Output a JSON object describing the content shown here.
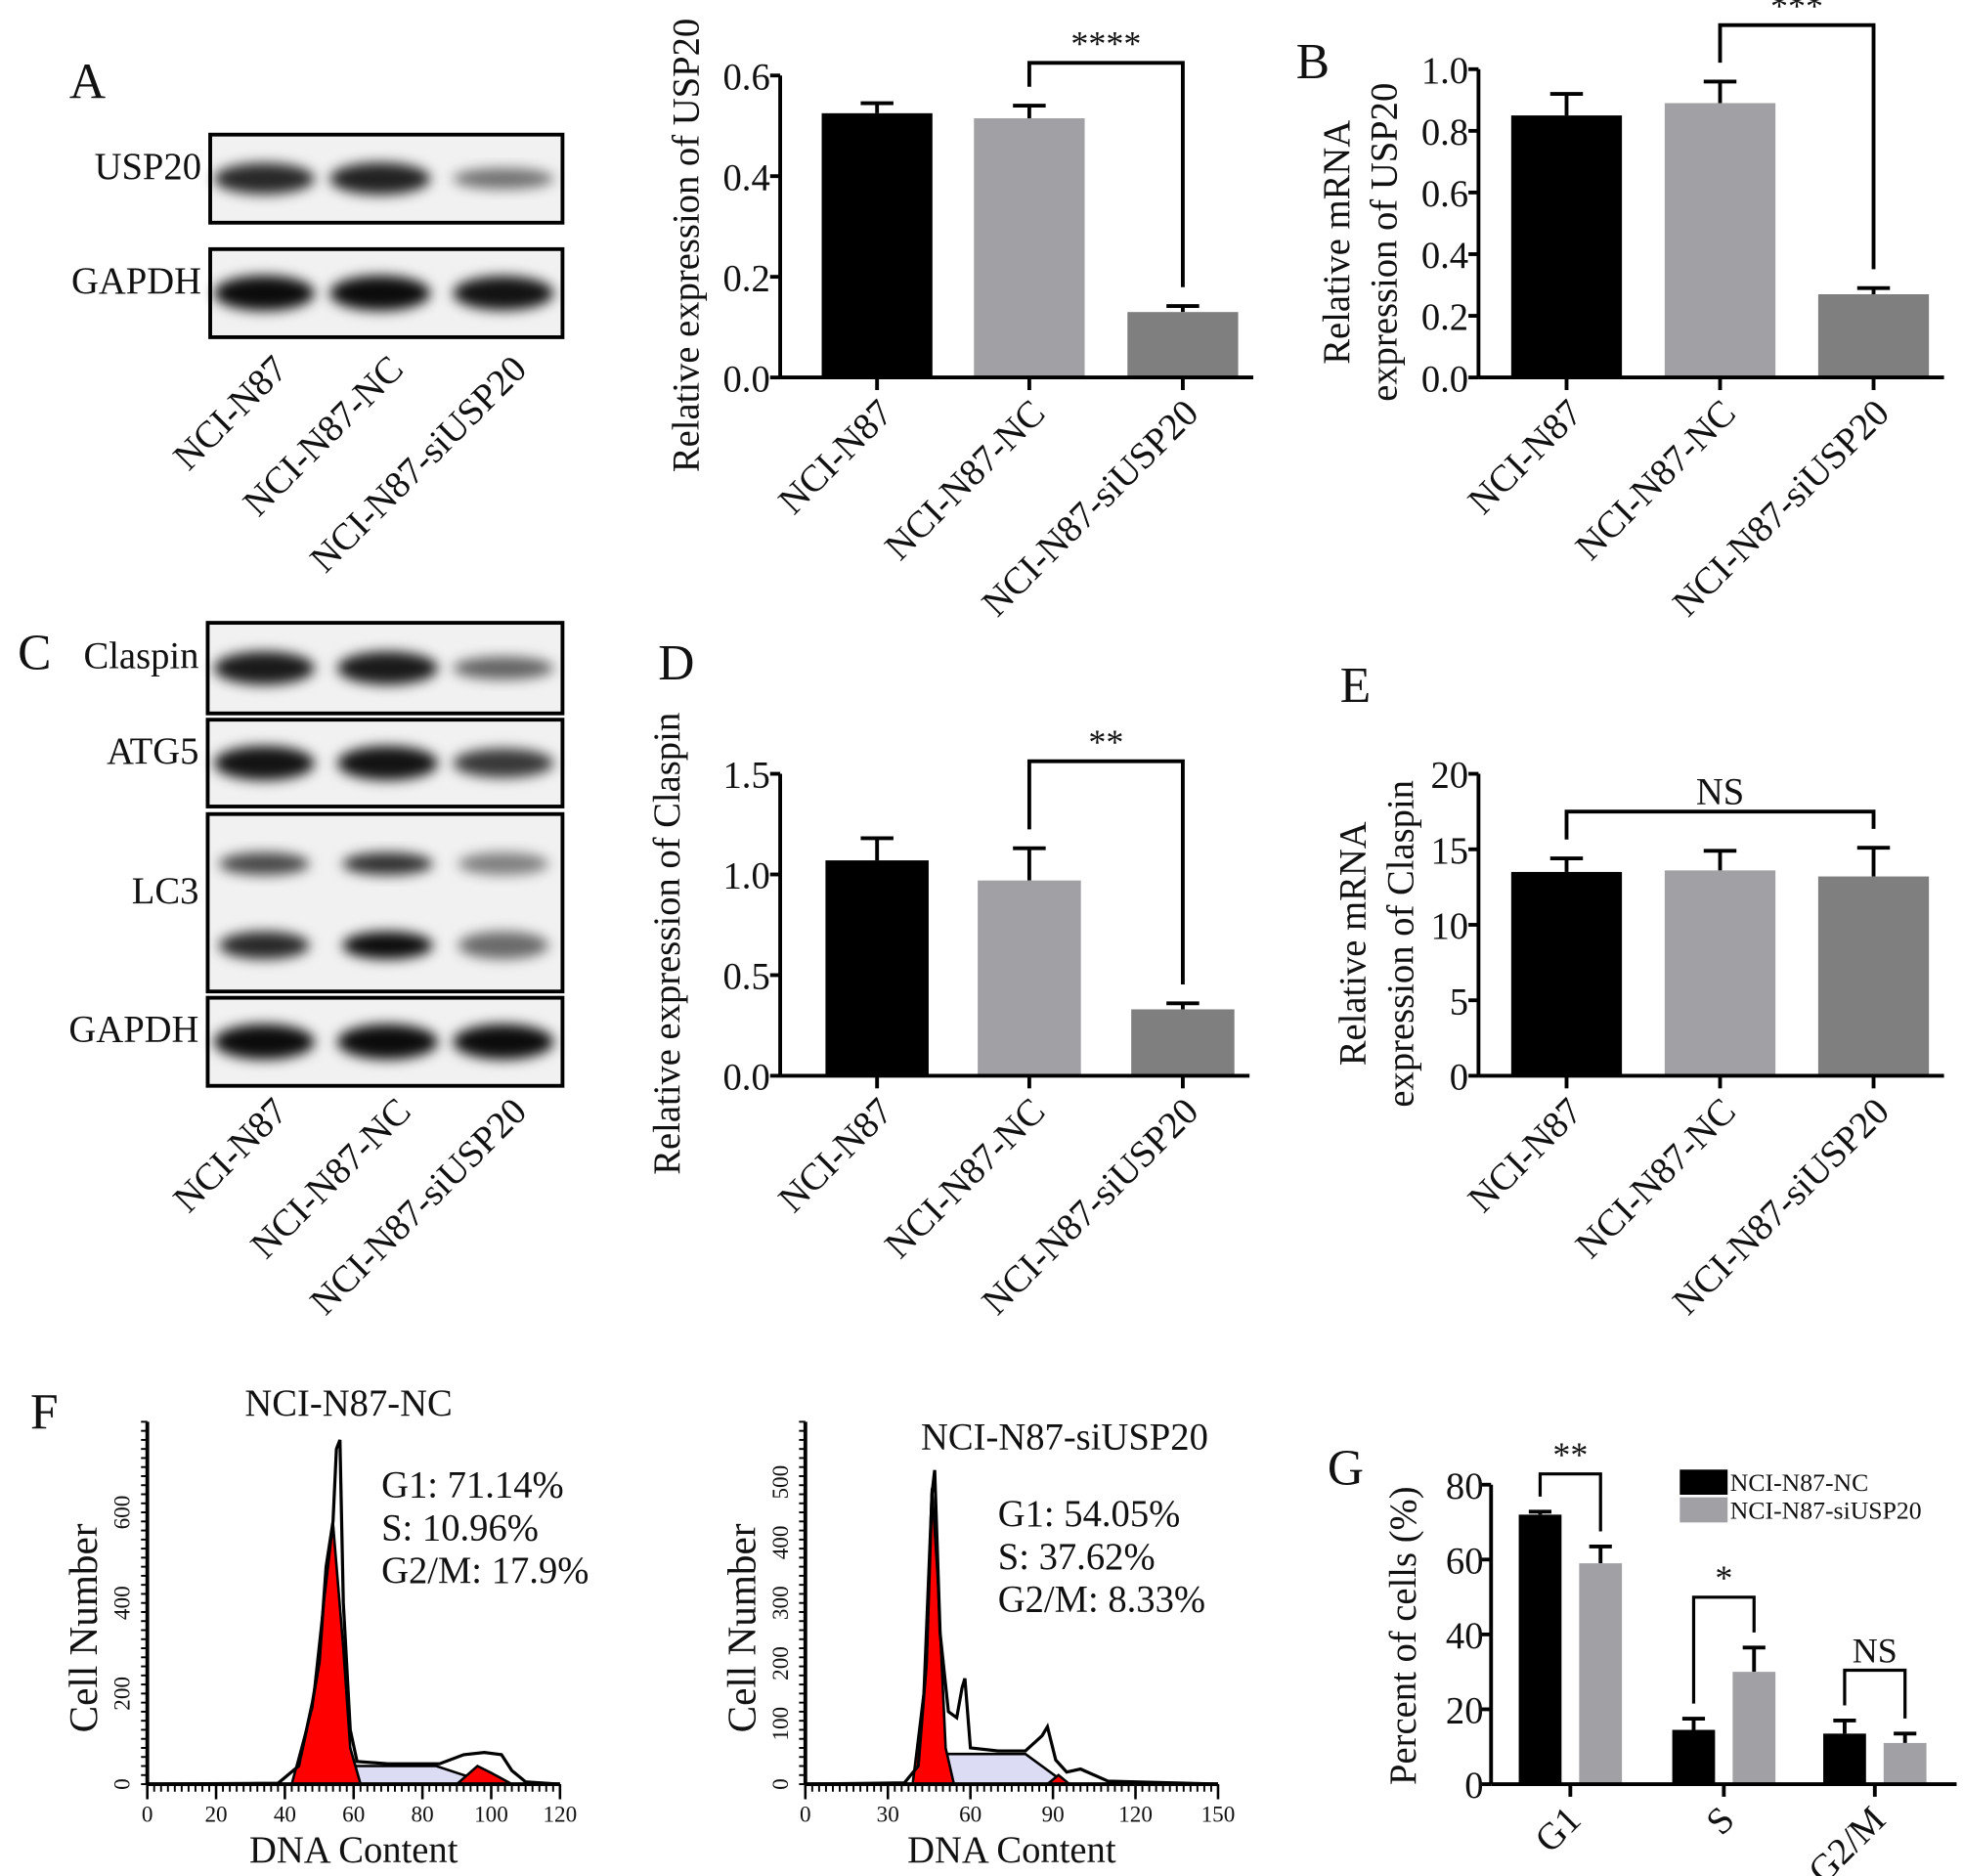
{
  "panel_letters": {
    "A": "A",
    "B": "B",
    "C": "C",
    "D": "D",
    "E": "E",
    "F": "F",
    "G": "G"
  },
  "blot_A": {
    "rows": [
      "USP20",
      "GAPDH"
    ],
    "lanes": [
      "NCI-N87",
      "NCI-N87-NC",
      "NCI-N87-siUSP20"
    ],
    "intensity": [
      [
        0.8,
        0.85,
        0.3
      ],
      [
        1,
        1,
        0.95
      ]
    ]
  },
  "blot_C": {
    "rows": [
      "Claspin",
      "ATG5",
      "LC3",
      "GAPDH"
    ],
    "lanes": [
      "NCI-N87",
      "NCI-N87-NC",
      "NCI-N87-siUSP20"
    ],
    "intensity": [
      [
        0.9,
        0.9,
        0.4
      ],
      [
        0.95,
        0.95,
        0.7
      ],
      [
        0.8,
        1,
        0.35
      ],
      [
        1,
        1,
        1
      ]
    ]
  },
  "colors": {
    "black": "#000000",
    "light_gray": "#a0a0a5",
    "dark_gray": "#7f7f7f",
    "red": "#ff0000",
    "lavender": "#dcdcf5"
  },
  "chart_data": [
    {
      "id": "A",
      "type": "bar",
      "categories": [
        "NCI-N87",
        "NCI-N87-NC",
        "NCI-N87-siUSP20"
      ],
      "values": [
        0.525,
        0.515,
        0.13
      ],
      "errors": [
        0.02,
        0.025,
        0.012
      ],
      "ylabel": "Relative expression of  USP20",
      "ylim": [
        0,
        0.6
      ],
      "yticks": [
        "0.0",
        "0.2",
        "0.4",
        "0.6"
      ],
      "significance": [
        {
          "from": 1,
          "to": 2,
          "label": "****"
        }
      ]
    },
    {
      "id": "B",
      "type": "bar",
      "categories": [
        "NCI-N87",
        "NCI-N87-NC",
        "NCI-N87-siUSP20"
      ],
      "values": [
        0.85,
        0.89,
        0.27
      ],
      "errors": [
        0.07,
        0.07,
        0.02
      ],
      "ylabel": [
        "Relative mRNA",
        "expression of USP20"
      ],
      "ylim": [
        0,
        1.0
      ],
      "yticks": [
        "0.0",
        "0.2",
        "0.4",
        "0.6",
        "0.8",
        "1.0"
      ],
      "significance": [
        {
          "from": 1,
          "to": 2,
          "label": "***"
        }
      ]
    },
    {
      "id": "D",
      "type": "bar",
      "categories": [
        "NCI-N87",
        "NCI-N87-NC",
        "NCI-N87-siUSP20"
      ],
      "values": [
        1.07,
        0.97,
        0.33
      ],
      "errors": [
        0.11,
        0.16,
        0.03
      ],
      "ylabel": "Relative expression of  Claspin",
      "ylim": [
        0,
        1.5
      ],
      "yticks": [
        "0.0",
        "0.5",
        "1.0",
        "1.5"
      ],
      "significance": [
        {
          "from": 1,
          "to": 2,
          "label": "**"
        }
      ]
    },
    {
      "id": "E",
      "type": "bar",
      "categories": [
        "NCI-N87",
        "NCI-N87-NC",
        "NCI-N87-siUSP20"
      ],
      "values": [
        13.5,
        13.6,
        13.2
      ],
      "errors": [
        0.9,
        1.3,
        1.9
      ],
      "ylabel": [
        "Relative mRNA",
        "expression of Claspin"
      ],
      "ylim": [
        0,
        20
      ],
      "yticks": [
        "0",
        "5",
        "10",
        "15",
        "20"
      ],
      "significance": [
        {
          "from": 0,
          "to": 2,
          "label": "NS"
        }
      ]
    },
    {
      "id": "F1",
      "type": "area",
      "title": "NCI-N87-NC",
      "xlabel": "DNA Content",
      "ylabel": "Cell Number",
      "xlim": [
        0,
        120
      ],
      "ylim": [
        0,
        800
      ],
      "xticks": [
        "0",
        "20",
        "40",
        "60",
        "80",
        "100",
        "120"
      ],
      "yticks": [
        "0",
        "200",
        "400",
        "600"
      ],
      "annotations": [
        "G1: 71.14%",
        "S: 10.96%",
        "G2/M: 17.9%"
      ],
      "histogram": [
        [
          0,
          0
        ],
        [
          38,
          2
        ],
        [
          44,
          40
        ],
        [
          48,
          180
        ],
        [
          50,
          270
        ],
        [
          52,
          480
        ],
        [
          54,
          580
        ],
        [
          55,
          740
        ],
        [
          56,
          760
        ],
        [
          57,
          400
        ],
        [
          59,
          120
        ],
        [
          61,
          50
        ],
        [
          70,
          45
        ],
        [
          85,
          45
        ],
        [
          92,
          65
        ],
        [
          98,
          70
        ],
        [
          103,
          65
        ],
        [
          106,
          30
        ],
        [
          110,
          5
        ],
        [
          120,
          0
        ]
      ],
      "g1_fit": [
        [
          42,
          0
        ],
        [
          48,
          170
        ],
        [
          51,
          380
        ],
        [
          54,
          575
        ],
        [
          57,
          300
        ],
        [
          59,
          80
        ],
        [
          62,
          0
        ]
      ],
      "s_fit": [
        [
          48,
          0
        ],
        [
          60,
          40
        ],
        [
          84,
          40
        ],
        [
          100,
          0
        ]
      ],
      "g2_fit": [
        [
          90,
          0
        ],
        [
          96,
          40
        ],
        [
          100,
          25
        ],
        [
          106,
          0
        ]
      ]
    },
    {
      "id": "F2",
      "type": "area",
      "title": "NCI-N87-siUSP20",
      "xlabel": "DNA Content",
      "ylabel": "Cell Number",
      "xlim": [
        0,
        150
      ],
      "ylim": [
        0,
        600
      ],
      "xticks": [
        "0",
        "30",
        "60",
        "90",
        "120",
        "150"
      ],
      "yticks": [
        "0",
        "100",
        "200",
        "300",
        "400",
        "500"
      ],
      "annotations": [
        "G1: 54.05%",
        "S: 37.62%",
        "G2/M: 8.33%"
      ],
      "histogram": [
        [
          0,
          0
        ],
        [
          36,
          2
        ],
        [
          41,
          30
        ],
        [
          44,
          200
        ],
        [
          46,
          480
        ],
        [
          47,
          520
        ],
        [
          49,
          250
        ],
        [
          52,
          120
        ],
        [
          55,
          110
        ],
        [
          57,
          160
        ],
        [
          58,
          175
        ],
        [
          60,
          60
        ],
        [
          70,
          55
        ],
        [
          80,
          55
        ],
        [
          86,
          80
        ],
        [
          88,
          95
        ],
        [
          91,
          40
        ],
        [
          95,
          20
        ],
        [
          100,
          25
        ],
        [
          110,
          5
        ],
        [
          150,
          0
        ]
      ],
      "g1_fit": [
        [
          39,
          0
        ],
        [
          43,
          150
        ],
        [
          46,
          490
        ],
        [
          48,
          350
        ],
        [
          51,
          60
        ],
        [
          54,
          0
        ]
      ],
      "s_fit": [
        [
          42,
          0
        ],
        [
          52,
          50
        ],
        [
          80,
          50
        ],
        [
          95,
          0
        ]
      ],
      "g2_fit": [
        [
          88,
          0
        ],
        [
          92,
          15
        ],
        [
          96,
          0
        ]
      ]
    },
    {
      "id": "G",
      "type": "bar",
      "categories": [
        "G1",
        "S",
        "G2/M"
      ],
      "series": [
        {
          "name": "NCI-N87-NC",
          "values": [
            72,
            14.5,
            13.5
          ],
          "errors": [
            0.8,
            3,
            3.5
          ]
        },
        {
          "name": "NCI-N87-siUSP20",
          "values": [
            59,
            30,
            11
          ],
          "errors": [
            4.5,
            6.5,
            2.5
          ]
        }
      ],
      "ylabel": "Percent of cells  (%)",
      "ylim": [
        0,
        80
      ],
      "yticks": [
        "0",
        "20",
        "40",
        "60",
        "80"
      ],
      "significance": [
        {
          "group": 0,
          "label": "**"
        },
        {
          "group": 1,
          "label": "*"
        },
        {
          "group": 2,
          "label": "NS"
        }
      ],
      "legend": "top-right"
    }
  ]
}
